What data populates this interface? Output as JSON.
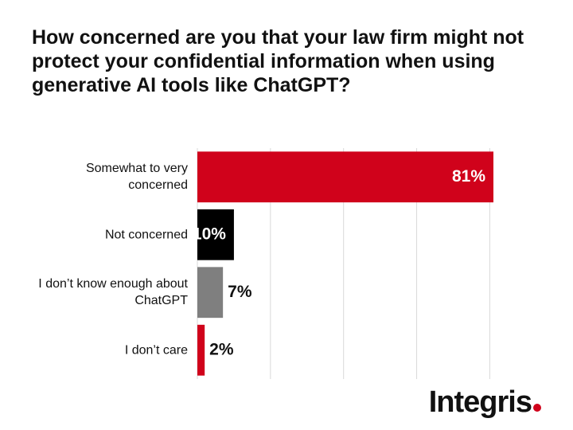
{
  "chart_data": {
    "type": "bar",
    "orientation": "horizontal",
    "title": "How concerned are you that your law firm might not protect your confidential information when using generative AI tools like ChatGPT?",
    "categories": [
      "Somewhat to very concerned",
      "Not concerned",
      "I don’t know enough about ChatGPT",
      "I don’t care"
    ],
    "values": [
      81,
      10,
      7,
      2
    ],
    "value_labels": [
      "81%",
      "10%",
      "7%",
      "2%"
    ],
    "colors": [
      "#d0021b",
      "#000000",
      "#7f7f7f",
      "#d0021b"
    ],
    "xlim": [
      0,
      81
    ],
    "xticks": [
      0,
      20,
      40,
      60,
      80
    ],
    "grid": true,
    "logo": "Integris"
  }
}
